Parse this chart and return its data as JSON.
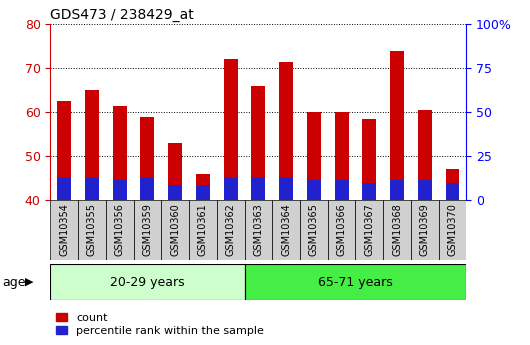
{
  "title": "GDS473 / 238429_at",
  "samples": [
    "GSM10354",
    "GSM10355",
    "GSM10356",
    "GSM10359",
    "GSM10360",
    "GSM10361",
    "GSM10362",
    "GSM10363",
    "GSM10364",
    "GSM10365",
    "GSM10366",
    "GSM10367",
    "GSM10368",
    "GSM10369",
    "GSM10370"
  ],
  "count_values": [
    62.5,
    65.0,
    61.5,
    59.0,
    53.0,
    46.0,
    72.0,
    66.0,
    71.5,
    60.0,
    60.0,
    58.5,
    74.0,
    60.5,
    47.0
  ],
  "percentile_values": [
    5.0,
    5.0,
    4.5,
    5.0,
    3.5,
    3.5,
    5.0,
    5.0,
    5.0,
    4.5,
    4.5,
    4.0,
    4.5,
    4.5,
    4.0
  ],
  "bar_bottom": 40,
  "group1_label": "20-29 years",
  "group2_label": "65-71 years",
  "group1_count": 7,
  "group2_count": 8,
  "ylim": [
    40,
    80
  ],
  "yticks": [
    40,
    50,
    60,
    70,
    80
  ],
  "y2ticks": [
    0,
    25,
    50,
    75,
    100
  ],
  "count_color": "#cc0000",
  "percentile_color": "#2222cc",
  "group1_bg": "#ccffcc",
  "group2_bg": "#44ee44",
  "tickbg_color": "#d0d0d0",
  "bar_width": 0.5,
  "legend_count": "count",
  "legend_percentile": "percentile rank within the sample",
  "title_fontsize": 10,
  "tick_fontsize": 7,
  "axis_fontsize": 9
}
